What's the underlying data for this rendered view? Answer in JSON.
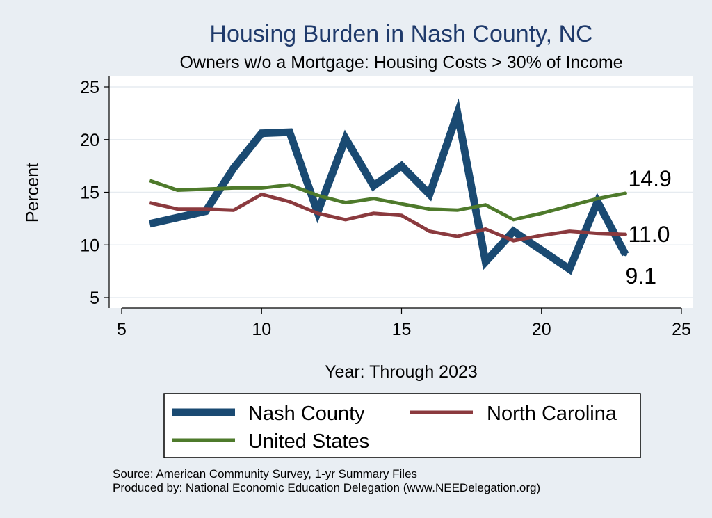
{
  "chart_data": {
    "type": "line",
    "title": "Housing Burden in Nash County, NC",
    "subtitle": "Owners w/o a Mortgage: Housing Costs > 30% of Income",
    "xlabel": "Year: Through 2023",
    "ylabel": "Percent",
    "xlim": [
      5,
      25
    ],
    "ylim": [
      4,
      26
    ],
    "xticks": [
      5,
      10,
      15,
      20,
      25
    ],
    "yticks": [
      5,
      10,
      15,
      20,
      25
    ],
    "grid": true,
    "series": [
      {
        "name": "Nash County",
        "color": "#1a4a72",
        "width": "thick",
        "x": [
          6,
          7,
          8,
          9,
          10,
          11,
          12,
          13,
          14,
          15,
          16,
          17,
          18,
          19,
          20,
          21,
          22,
          23
        ],
        "y": [
          12.0,
          12.6,
          13.2,
          17.3,
          20.6,
          20.7,
          13.1,
          20.1,
          15.6,
          17.5,
          14.8,
          22.5,
          8.4,
          11.3,
          9.5,
          7.7,
          14.1,
          9.1
        ],
        "end_label": "9.1"
      },
      {
        "name": "North Carolina",
        "color": "#8b3a3e",
        "width": "medium",
        "x": [
          6,
          7,
          8,
          9,
          10,
          11,
          12,
          13,
          14,
          15,
          16,
          17,
          18,
          19,
          20,
          21,
          22,
          23
        ],
        "y": [
          14.0,
          13.4,
          13.4,
          13.3,
          14.8,
          14.1,
          13.0,
          12.4,
          13.0,
          12.8,
          11.3,
          10.8,
          11.5,
          10.4,
          10.9,
          11.3,
          11.1,
          11.0
        ],
        "end_label": "11.0"
      },
      {
        "name": "United States",
        "color": "#4e7a2b",
        "width": "medium",
        "x": [
          6,
          7,
          8,
          9,
          10,
          11,
          12,
          13,
          14,
          15,
          16,
          17,
          18,
          19,
          20,
          21,
          22,
          23
        ],
        "y": [
          16.1,
          15.2,
          15.3,
          15.4,
          15.4,
          15.7,
          14.7,
          14.0,
          14.4,
          13.9,
          13.4,
          13.3,
          13.8,
          12.4,
          13.0,
          13.7,
          14.4,
          14.9
        ],
        "end_label": "14.9"
      }
    ],
    "legend": {
      "placement": "bottom",
      "items": [
        "Nash County",
        "North Carolina",
        "United States"
      ]
    },
    "source_lines": [
      "Source: American Community Survey, 1-yr Summary Files",
      "Produced by: National Economic Education Delegation (www.NEEDelegation.org)"
    ]
  }
}
